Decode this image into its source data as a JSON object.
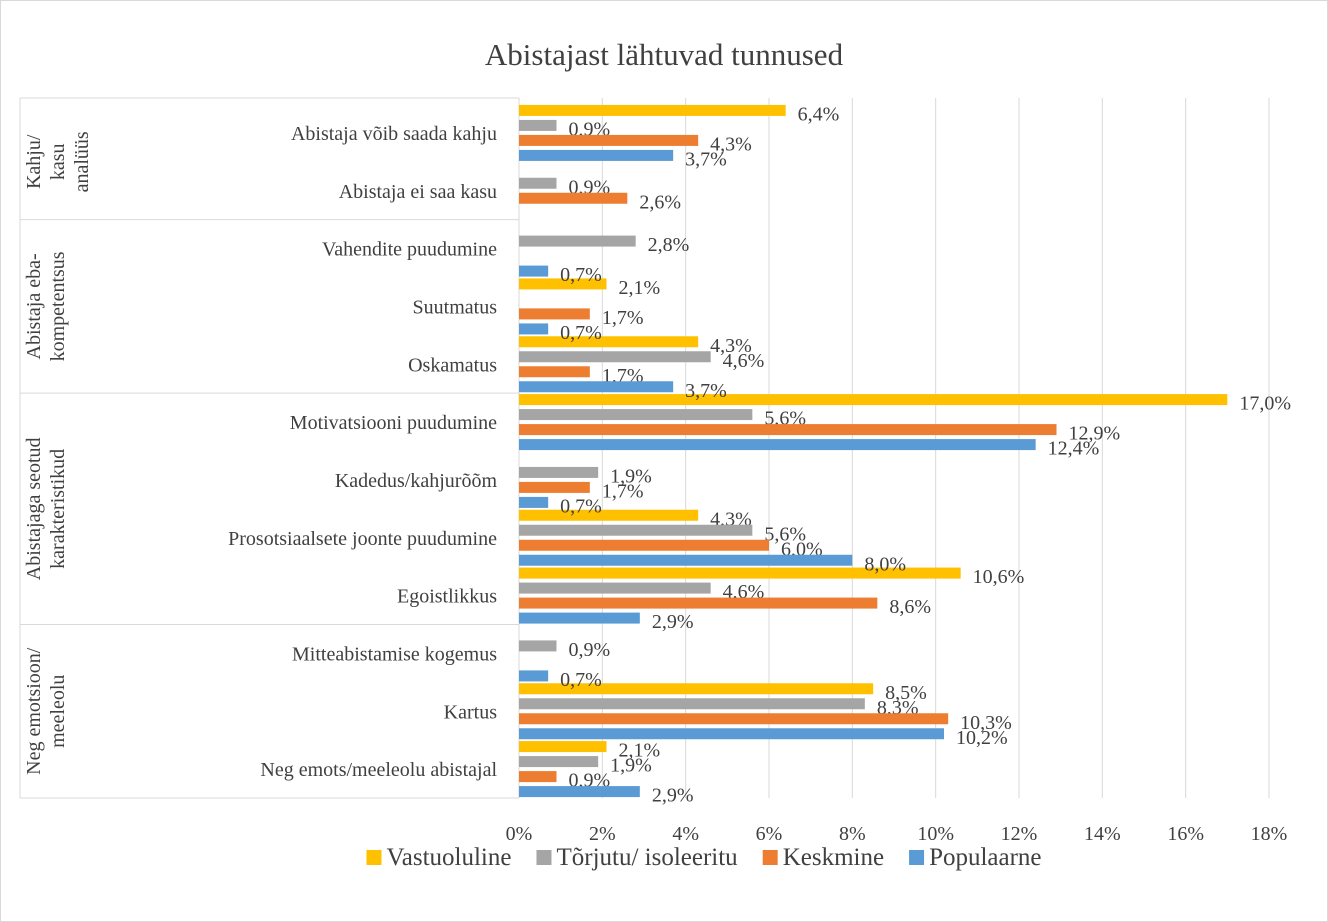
{
  "chart_data": {
    "type": "bar",
    "orientation": "horizontal",
    "title": "Abistajast lähtuvad tunnused",
    "groups": [
      {
        "label": [
          "Kahju/",
          "kasu",
          "analüüs"
        ],
        "categories": [
          "Abistaja võib saada kahju",
          "Abistaja ei saa kasu"
        ]
      },
      {
        "label": [
          "Abistaja eba-",
          "kompetentsus"
        ],
        "categories": [
          "Vahendite puudumine",
          "Suutmatus",
          "Oskamatus"
        ]
      },
      {
        "label": [
          "Abistajaga seotud",
          "karakteristikud"
        ],
        "categories": [
          "Motivatsiooni puudumine",
          "Kadedus/kahjurõõm",
          "Prosotsiaalsete joonte puudumine",
          "Egoistlikkus"
        ]
      },
      {
        "label": [
          "Neg emotsioon/",
          "meeleolu"
        ],
        "categories": [
          "Mitteabistamise kogemus",
          "Kartus",
          "Neg emots/meeleolu abistajal"
        ]
      }
    ],
    "series": [
      {
        "name": "Vastuoluline",
        "color": "#ffc000",
        "values": [
          6.4,
          null,
          null,
          2.1,
          4.3,
          17.0,
          null,
          4.3,
          10.6,
          null,
          8.5,
          2.1
        ],
        "value_labels": [
          "6,4%",
          null,
          null,
          "2,1%",
          "4,3%",
          "17,0%",
          null,
          "4,3%",
          "10,6%",
          null,
          "8,5%",
          "2,1%"
        ]
      },
      {
        "name": "Tõrjutu/ isoleeritu",
        "color": "#a5a5a5",
        "values": [
          0.9,
          0.9,
          2.8,
          null,
          4.6,
          5.6,
          1.9,
          5.6,
          4.6,
          0.9,
          8.3,
          1.9
        ],
        "value_labels": [
          "0,9%",
          "0,9%",
          "2,8%",
          null,
          "4,6%",
          "5,6%",
          "1,9%",
          "5,6%",
          "4,6%",
          "0,9%",
          "8,3%",
          "1,9%"
        ]
      },
      {
        "name": "Keskmine",
        "color": "#ed7d31",
        "values": [
          4.3,
          2.6,
          null,
          1.7,
          1.7,
          12.9,
          1.7,
          6.0,
          8.6,
          null,
          10.3,
          0.9
        ],
        "value_labels": [
          "4,3%",
          "2,6%",
          null,
          "1,7%",
          "1,7%",
          "12,9%",
          "1,7%",
          "6,0%",
          "8,6%",
          null,
          "10,3%",
          "0,9%"
        ]
      },
      {
        "name": "Populaarne",
        "color": "#5b9bd5",
        "values": [
          3.7,
          null,
          0.7,
          0.7,
          3.7,
          12.4,
          0.7,
          8.0,
          2.9,
          0.7,
          10.2,
          2.9
        ],
        "value_labels": [
          "3,7%",
          null,
          "0,7%",
          "0,7%",
          "3,7%",
          "12,4%",
          "0,7%",
          "8,0%",
          "2,9%",
          "0,7%",
          "10,2%",
          "2,9%"
        ]
      }
    ],
    "xlim": [
      0,
      18
    ],
    "xticks": [
      {
        "value": 0,
        "label": "0%"
      },
      {
        "value": 2,
        "label": "2%"
      },
      {
        "value": 4,
        "label": "4%"
      },
      {
        "value": 6,
        "label": "6%"
      },
      {
        "value": 8,
        "label": "8%"
      },
      {
        "value": 10,
        "label": "10%"
      },
      {
        "value": 12,
        "label": "12%"
      },
      {
        "value": 14,
        "label": "14%"
      },
      {
        "value": 16,
        "label": "16%"
      },
      {
        "value": 18,
        "label": "18%"
      }
    ],
    "grid": true,
    "legend": "bottom"
  }
}
